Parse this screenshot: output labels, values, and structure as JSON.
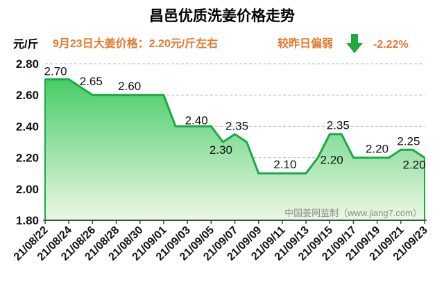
{
  "chart_data": {
    "type": "area",
    "title": "昌邑优质洗姜价格走势",
    "ylabel": "元/斤",
    "xlabel": "",
    "x": [
      "21/08/22",
      "21/08/23",
      "21/08/24",
      "21/08/25",
      "21/08/26",
      "21/08/27",
      "21/08/28",
      "21/08/29",
      "21/08/30",
      "21/08/31",
      "21/09/01",
      "21/09/02",
      "21/09/03",
      "21/09/04",
      "21/09/05",
      "21/09/06",
      "21/09/07",
      "21/09/08",
      "21/09/09",
      "21/09/10",
      "21/09/11",
      "21/09/12",
      "21/09/13",
      "21/09/14",
      "21/09/15",
      "21/09/16",
      "21/09/17",
      "21/09/18",
      "21/09/19",
      "21/09/20",
      "21/09/21",
      "21/09/22",
      "21/09/23"
    ],
    "values": [
      2.7,
      2.7,
      2.7,
      2.65,
      2.6,
      2.6,
      2.6,
      2.6,
      2.6,
      2.6,
      2.6,
      2.4,
      2.4,
      2.4,
      2.4,
      2.3,
      2.35,
      2.3,
      2.1,
      2.1,
      2.1,
      2.1,
      2.1,
      2.2,
      2.35,
      2.35,
      2.2,
      2.2,
      2.2,
      2.2,
      2.25,
      2.25,
      2.2
    ],
    "x_ticks": [
      "21/08/22",
      "21/08/24",
      "21/08/26",
      "21/08/28",
      "21/08/30",
      "21/09/01",
      "21/09/03",
      "21/09/05",
      "21/09/07",
      "21/09/09",
      "21/09/11",
      "21/09/13",
      "21/09/15",
      "21/09/17",
      "21/09/19",
      "21/09/21",
      "21/09/23"
    ],
    "y_ticks": [
      "1.80",
      "2.00",
      "2.20",
      "2.40",
      "2.60",
      "2.80"
    ],
    "ylim": [
      1.8,
      2.8
    ],
    "grid": true,
    "data_labels": [
      {
        "x": "21/08/23",
        "text": "2.70"
      },
      {
        "x": "21/08/25",
        "text": "2.65"
      },
      {
        "x": "21/08/29",
        "text": "2.60"
      },
      {
        "x": "21/09/04",
        "text": "2.40"
      },
      {
        "x": "21/09/06",
        "text": "2.30"
      },
      {
        "x": "21/09/07",
        "text": "2.35"
      },
      {
        "x": "21/09/11",
        "text": "2.10"
      },
      {
        "x": "21/09/14",
        "text": "2.20"
      },
      {
        "x": "21/09/16",
        "text": "2.35"
      },
      {
        "x": "21/09/19",
        "text": "2.20"
      },
      {
        "x": "21/09/22",
        "text": "2.25"
      },
      {
        "x": "21/09/23",
        "text": "2.20"
      }
    ],
    "colors": {
      "line": "#17AB48",
      "fill_top": "#35C85A",
      "fill_bottom": "#EDF7E4",
      "grid": "#B8B8B8",
      "axis": "#3C3C3C"
    }
  },
  "header": {
    "price_note": "9月23日大姜价格：2.20元/斤左右",
    "trend_label": "较昨日偏弱",
    "trend_icon": "down-arrow-icon",
    "change": "-2.22%",
    "colors": {
      "highlight": "#E8782A",
      "arrow": "#1EAA3C"
    }
  },
  "watermark": "中国姜网监制（www.jiang7.com）"
}
